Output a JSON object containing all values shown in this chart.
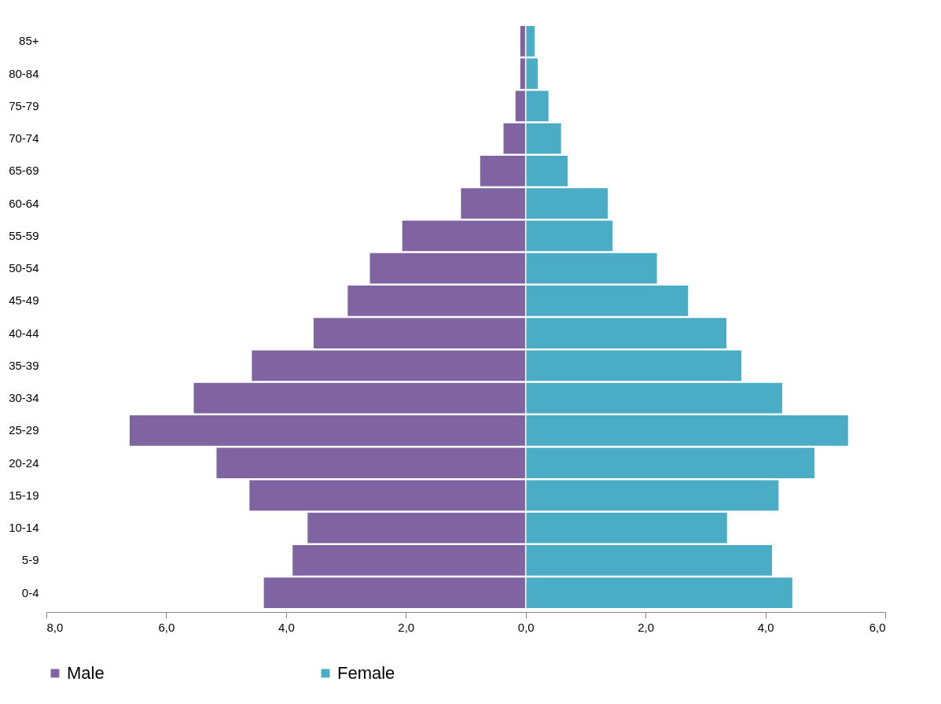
{
  "chart_data": {
    "type": "bar",
    "orientation": "horizontal",
    "categories": [
      "85+",
      "80-84",
      "75-79",
      "70-74",
      "65-69",
      "60-64",
      "55-59",
      "50-54",
      "45-49",
      "40-44",
      "35-39",
      "30-34",
      "25-29",
      "20-24",
      "15-19",
      "10-14",
      "5-9",
      "0-4"
    ],
    "series": [
      {
        "name": "Male",
        "color": "#8064a2",
        "values": [
          -0.1,
          -0.1,
          -0.18,
          -0.38,
          -0.77,
          -1.09,
          -2.07,
          -2.61,
          -2.98,
          -3.55,
          -4.58,
          -5.55,
          -6.62,
          -5.17,
          -4.62,
          -3.65,
          -3.9,
          -4.38
        ]
      },
      {
        "name": "Female",
        "color": "#4bacc6",
        "values": [
          0.16,
          0.21,
          0.39,
          0.6,
          0.71,
          1.38,
          1.46,
          2.2,
          2.72,
          3.36,
          3.61,
          4.29,
          5.39,
          4.83,
          4.23,
          3.37,
          4.12,
          4.46
        ]
      }
    ],
    "xlim": [
      -8,
      6
    ],
    "xticks": [
      {
        "value": -8,
        "label": "8,0"
      },
      {
        "value": -6,
        "label": "6,0"
      },
      {
        "value": -4,
        "label": "4,0"
      },
      {
        "value": -2,
        "label": "2,0"
      },
      {
        "value": 0,
        "label": "0,0"
      },
      {
        "value": 2,
        "label": "2,0"
      },
      {
        "value": 4,
        "label": "4,0"
      },
      {
        "value": 6,
        "label": "6,0"
      }
    ],
    "stacked": true,
    "grid": false,
    "legend": "bottom"
  }
}
